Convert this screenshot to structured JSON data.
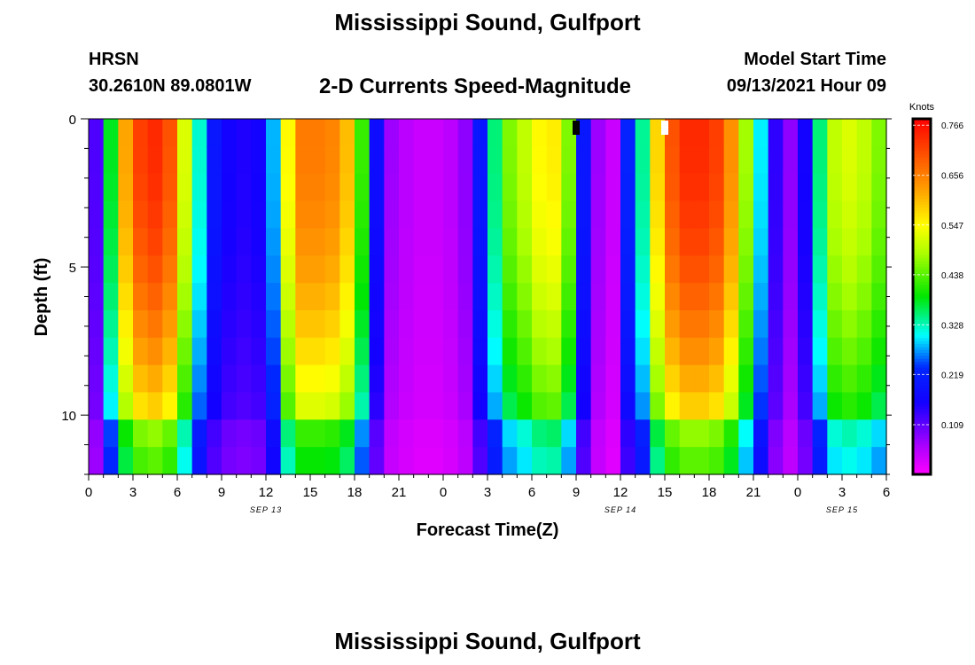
{
  "header": {
    "title": "Mississippi Sound, Gulfport",
    "station": "HRSN",
    "coordinates": "30.2610N  89.0801W",
    "subtitle": "2-D Currents Speed-Magnitude",
    "model_start_label": "Model Start Time",
    "model_start_time": "09/13/2021 Hour 09"
  },
  "footer": {
    "title": "Mississippi Sound, Gulfport"
  },
  "chart_data": {
    "type": "heatmap",
    "xlabel": "Forecast Time(Z)",
    "ylabel": "Depth (ft)",
    "x_ticks": [
      "0",
      "3",
      "6",
      "9",
      "12",
      "15",
      "18",
      "21",
      "0",
      "3",
      "6",
      "9",
      "12",
      "15",
      "18",
      "21",
      "0",
      "3",
      "6"
    ],
    "x_range_hours": [
      0,
      54
    ],
    "date_labels": [
      {
        "text": "SEP 13",
        "hour": 12
      },
      {
        "text": "SEP 14",
        "hour": 36
      },
      {
        "text": "SEP 15",
        "hour": 51
      }
    ],
    "y_ticks": [
      "0",
      "5",
      "10"
    ],
    "y_range_ft": [
      0,
      12
    ],
    "y_inverted": true,
    "colorbar": {
      "label": "Knots",
      "ticks": [
        "0.766",
        "0.656",
        "0.547",
        "0.438",
        "0.328",
        "0.219",
        "0.109"
      ],
      "range": [
        0.0,
        0.78
      ]
    },
    "markers": [
      {
        "hour": 33,
        "depth": 0,
        "color": "#000000"
      },
      {
        "hour": 39,
        "depth": 0,
        "color": "#ffffff"
      }
    ],
    "surface_speed_knots_by_hour": [
      0.12,
      0.38,
      0.62,
      0.72,
      0.74,
      0.7,
      0.52,
      0.32,
      0.2,
      0.16,
      0.15,
      0.16,
      0.28,
      0.55,
      0.66,
      0.66,
      0.65,
      0.6,
      0.42,
      0.18,
      0.07,
      0.05,
      0.04,
      0.04,
      0.05,
      0.08,
      0.2,
      0.35,
      0.46,
      0.5,
      0.55,
      0.56,
      0.46,
      0.2,
      0.07,
      0.04,
      0.22,
      0.34,
      0.58,
      0.7,
      0.74,
      0.74,
      0.72,
      0.64,
      0.48,
      0.3,
      0.14,
      0.08,
      0.16,
      0.35,
      0.5,
      0.52,
      0.5,
      0.46
    ],
    "depth_rows_ft": [
      0,
      1,
      2,
      3,
      4,
      5,
      6,
      7,
      8,
      9,
      10,
      11,
      12
    ]
  }
}
